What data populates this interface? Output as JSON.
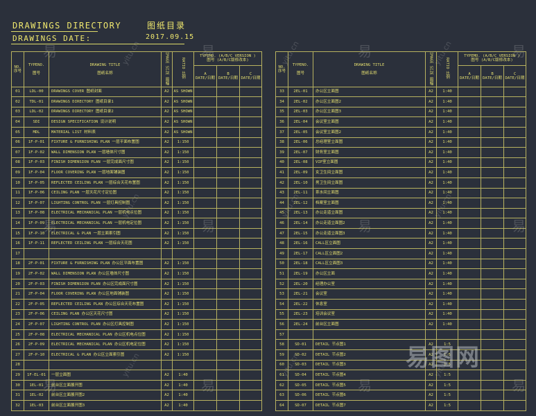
{
  "header": {
    "title": "DRAWINGS  DIRECTORY",
    "title_cn": "图纸目录",
    "date_label": "DRAWINGS  DATE:",
    "date_value": "2017.09.15"
  },
  "table_headers": {
    "no": "NO.",
    "no_cn": "序号",
    "typeno": "TYPENO.",
    "typeno_cn": "图号",
    "drawing_title": "DRAWING  TITLE",
    "drawing_title_cn": "图纸名称",
    "image_size": "IMAGE SIZE 图幅",
    "ratio": "RATIO 比例",
    "version": "TYPEMO. (A/B/C VERSION )",
    "version_cn": "图号 (A/B/C版修改本)",
    "col_a": "A",
    "col_b": "B",
    "col_c": "C",
    "date_cn": "DATE/日期"
  },
  "left_rows": [
    {
      "no": "01",
      "type": "LDL-00",
      "title": "DRAWINGS  COVER  图纸封面",
      "size": "A2",
      "ratio": "AS SHOWN"
    },
    {
      "no": "02",
      "type": "TDL-01",
      "title": "DRAWINGS  DIRECTORY  图纸目录1",
      "size": "A2",
      "ratio": "AS SHOWN"
    },
    {
      "no": "03",
      "type": "LDL-02",
      "title": "DRAWINGS  DIRECTORY  图纸目录2",
      "size": "A2",
      "ratio": "AS SHOWN"
    },
    {
      "no": "04",
      "type": "SDI",
      "title": "DESIGN SPECIFICATION  设计说明",
      "size": "A2",
      "ratio": "AS SHOWN"
    },
    {
      "no": "05",
      "type": "MDL",
      "title": "MATERIAL LIST  材料表",
      "size": "A2",
      "ratio": "AS SHOWN"
    },
    {
      "no": "06",
      "type": "1F-P-01",
      "title": "FIXTURE & FURNISHING  PLAN  一层平面布置图",
      "size": "A2",
      "ratio": "1:150"
    },
    {
      "no": "07",
      "type": "1F-P-02",
      "title": "WALL  DIMENSION  PLAN  一层墙体尺寸图",
      "size": "A2",
      "ratio": "1:150"
    },
    {
      "no": "08",
      "type": "1F-P-03",
      "title": "FINISH DIMENSION PLAN  一层完成面尺寸图",
      "size": "A2",
      "ratio": "1:150"
    },
    {
      "no": "09",
      "type": "1F-P-04",
      "title": "FLOOR  COVERING  PLAN  一层地面铺装图",
      "size": "A2",
      "ratio": "1:150"
    },
    {
      "no": "10",
      "type": "1F-P-05",
      "title": "REFLECTED CEILING PLAN  一层综合天花布置图",
      "size": "A2",
      "ratio": "1:150"
    },
    {
      "no": "11",
      "type": "1F-P-06",
      "title": "CEILING  PLAN  一层天花尺寸定位图",
      "size": "A2",
      "ratio": "1:150"
    },
    {
      "no": "12",
      "type": "1F-P-07",
      "title": "LIGHTING  CONTROL  PLAN  一层灯具控制图",
      "size": "A2",
      "ratio": "1:150"
    },
    {
      "no": "13",
      "type": "1F-P-08",
      "title": "ELECTRICAL MECHANICAL PLAN  一层机电点位图",
      "size": "A2",
      "ratio": "1:150"
    },
    {
      "no": "14",
      "type": "1F-P-09",
      "title": "ELECTRICAL MECHANICAL PLAN  一层机电定位图",
      "size": "A2",
      "ratio": "1:150"
    },
    {
      "no": "15",
      "type": "1F-P-10",
      "title": "ELECTRICAL & PLAN  一层立面索引图",
      "size": "A2",
      "ratio": "1:150"
    },
    {
      "no": "16",
      "type": "1F-P-11",
      "title": "REFLECTED CEILING PLAN  一层综合天花图",
      "size": "A2",
      "ratio": "1:150"
    },
    {
      "no": "17",
      "type": "",
      "title": "",
      "size": "",
      "ratio": ""
    },
    {
      "no": "18",
      "type": "2F-P-01",
      "title": "FIXTURE & FURNISHING  PLAN  办公区平面布置图",
      "size": "A2",
      "ratio": "1:150"
    },
    {
      "no": "19",
      "type": "2F-P-02",
      "title": "WALL  DIMENSION  PLAN  办公区墙体尺寸图",
      "size": "A2",
      "ratio": "1:150"
    },
    {
      "no": "20",
      "type": "2F-P-03",
      "title": "FINISH DIMENSION PLAN  办公区完成面尺寸图",
      "size": "A2",
      "ratio": "1:150"
    },
    {
      "no": "21",
      "type": "2F-P-04",
      "title": "FLOOR  COVERING  PLAN  办公区地面铺装图",
      "size": "A2",
      "ratio": "1:150"
    },
    {
      "no": "22",
      "type": "2F-P-05",
      "title": "REFLECTED CEILING PLAN  办公区综合天花布置图",
      "size": "A2",
      "ratio": "1:150"
    },
    {
      "no": "23",
      "type": "2F-P-06",
      "title": "CEILING  PLAN  办公区天花尺寸图",
      "size": "A2",
      "ratio": "1:150"
    },
    {
      "no": "24",
      "type": "2F-P-07",
      "title": "LIGHTING  CONTROL  PLAN  办公区灯具控制图",
      "size": "A2",
      "ratio": "1:150"
    },
    {
      "no": "25",
      "type": "2F-P-08",
      "title": "ELECTRICAL MECHANICAL PLAN  办公区机电点位图",
      "size": "A2",
      "ratio": "1:150"
    },
    {
      "no": "26",
      "type": "2F-P-09",
      "title": "ELECTRICAL MECHANICAL PLAN  办公区机电定位图",
      "size": "A2",
      "ratio": "1:150"
    },
    {
      "no": "27",
      "type": "2F-P-10",
      "title": "ELECTRICAL & PLAN  办公区立面索引图",
      "size": "A2",
      "ratio": "1:150"
    },
    {
      "no": "28",
      "type": "",
      "title": "",
      "size": "",
      "ratio": ""
    },
    {
      "no": "29",
      "type": "1F-EL-01",
      "title": "一层立面图",
      "size": "A2",
      "ratio": "1:40"
    },
    {
      "no": "30",
      "type": "1EL-01",
      "title": "前台区立面展开图",
      "size": "A2",
      "ratio": "1:40"
    },
    {
      "no": "31",
      "type": "1EL-02",
      "title": "前台区立面展开图2",
      "size": "A2",
      "ratio": "1:40"
    },
    {
      "no": "32",
      "type": "1EL-03",
      "title": "前台区立面展开图3",
      "size": "A2",
      "ratio": "1:40"
    }
  ],
  "right_rows": [
    {
      "no": "33",
      "type": "2EL-01",
      "title": "办公区立面图",
      "size": "A2",
      "ratio": "1:40"
    },
    {
      "no": "34",
      "type": "2EL-02",
      "title": "办公区立面图2",
      "size": "A2",
      "ratio": "1:40"
    },
    {
      "no": "35",
      "type": "2EL-03",
      "title": "办公区立面图3",
      "size": "A2",
      "ratio": "1:40"
    },
    {
      "no": "36",
      "type": "2EL-04",
      "title": "会议室立面图",
      "size": "A2",
      "ratio": "1:40"
    },
    {
      "no": "37",
      "type": "2EL-05",
      "title": "会议室立面图2",
      "size": "A2",
      "ratio": "1:40"
    },
    {
      "no": "38",
      "type": "2EL-06",
      "title": "总经理室立面图",
      "size": "A2",
      "ratio": "1:40"
    },
    {
      "no": "39",
      "type": "2EL-07",
      "title": "财务室立面图",
      "size": "A2",
      "ratio": "1:40"
    },
    {
      "no": "40",
      "type": "2EL-08",
      "title": "VIP室立面图",
      "size": "A2",
      "ratio": "1:40"
    },
    {
      "no": "41",
      "type": "2EL-09",
      "title": "女卫生间立面图",
      "size": "A2",
      "ratio": "1:40"
    },
    {
      "no": "42",
      "type": "2EL-10",
      "title": "男卫生间立面图",
      "size": "A2",
      "ratio": "1:40"
    },
    {
      "no": "43",
      "type": "2EL-11",
      "title": "茶水间立面图",
      "size": "A2",
      "ratio": "1:40"
    },
    {
      "no": "44",
      "type": "2EL-12",
      "title": "档案室立面图",
      "size": "A2",
      "ratio": "1:40"
    },
    {
      "no": "45",
      "type": "2EL-13",
      "title": "办公走道立面图",
      "size": "A2",
      "ratio": "1:40"
    },
    {
      "no": "46",
      "type": "2EL-14",
      "title": "办公走道立面图2",
      "size": "A2",
      "ratio": "1:40"
    },
    {
      "no": "47",
      "type": "2EL-15",
      "title": "办公走道立面图3",
      "size": "A2",
      "ratio": "1:40"
    },
    {
      "no": "48",
      "type": "2EL-16",
      "title": "CALL区立面图",
      "size": "A2",
      "ratio": "1:40"
    },
    {
      "no": "49",
      "type": "2EL-17",
      "title": "CALL区立面图2",
      "size": "A2",
      "ratio": "1:40"
    },
    {
      "no": "50",
      "type": "2EL-18",
      "title": "CALL区立面图3",
      "size": "A2",
      "ratio": "1:40"
    },
    {
      "no": "51",
      "type": "2EL-19",
      "title": "办公区立面",
      "size": "A2",
      "ratio": "1:40"
    },
    {
      "no": "52",
      "type": "2EL-20",
      "title": "经理办公室",
      "size": "A2",
      "ratio": "1:40"
    },
    {
      "no": "53",
      "type": "2EL-21",
      "title": "会议室",
      "size": "A2",
      "ratio": "1:40"
    },
    {
      "no": "54",
      "type": "2EL-22",
      "title": "休息室",
      "size": "A2",
      "ratio": "1:40"
    },
    {
      "no": "55",
      "type": "2EL-23",
      "title": "培训会议室",
      "size": "A2",
      "ratio": "1:40"
    },
    {
      "no": "56",
      "type": "2EL-24",
      "title": "前台区立面图",
      "size": "A2",
      "ratio": "1:40"
    },
    {
      "no": "57",
      "type": "",
      "title": "",
      "size": "",
      "ratio": ""
    },
    {
      "no": "58",
      "type": "SD-01",
      "title": "DETAIL  节点图1",
      "size": "A2",
      "ratio": "1:5"
    },
    {
      "no": "59",
      "type": "SD-02",
      "title": "DETAIL  节点图2",
      "size": "A2",
      "ratio": "1:5"
    },
    {
      "no": "60",
      "type": "SD-03",
      "title": "DETAIL  节点图3",
      "size": "A2",
      "ratio": "1:5"
    },
    {
      "no": "61",
      "type": "SD-04",
      "title": "DETAIL  节点图4",
      "size": "A2",
      "ratio": "1:5"
    },
    {
      "no": "62",
      "type": "SD-05",
      "title": "DETAIL  节点图5",
      "size": "A2",
      "ratio": "1:5"
    },
    {
      "no": "63",
      "type": "SD-06",
      "title": "DETAIL  节点图6",
      "size": "A2",
      "ratio": "1:5"
    },
    {
      "no": "64",
      "type": "SD-07",
      "title": "DETAIL  节点图7",
      "size": "A2",
      "ratio": "1:5"
    }
  ],
  "watermark": {
    "cn": "易",
    "url": "yitu.cn",
    "brand": "易图网"
  }
}
